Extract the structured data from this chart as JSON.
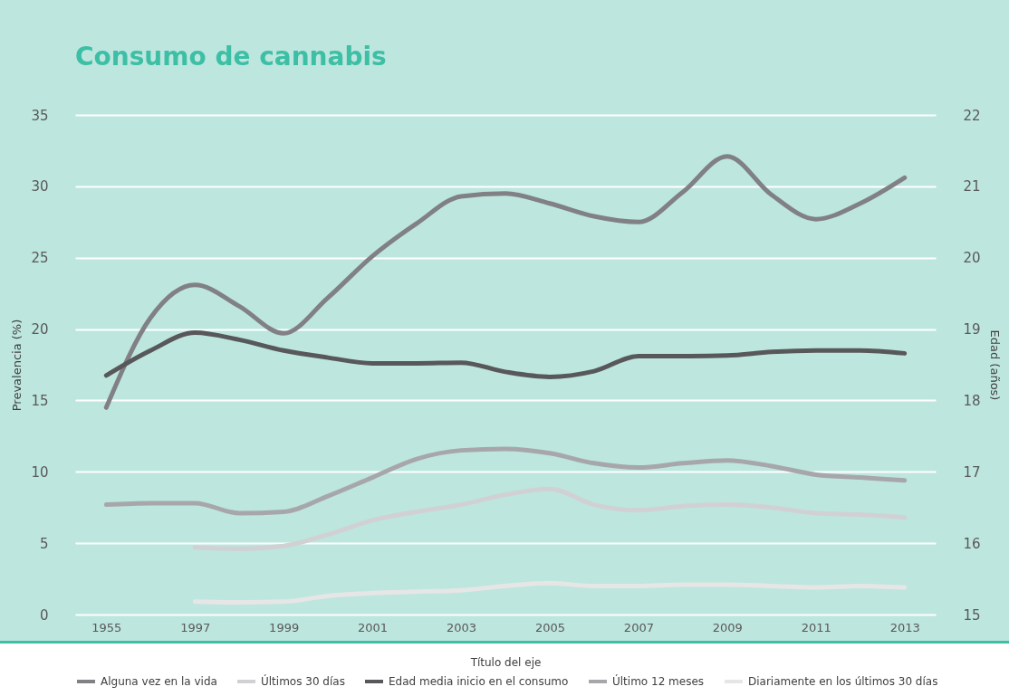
{
  "chart_data": {
    "type": "line",
    "title": "Consumo de cannabis",
    "xlabel": "Título del eje",
    "ylabel": "Prevalencia (%)",
    "y2label": "Edad (años)",
    "categories": [
      "1955",
      null,
      "1997",
      null,
      "1999",
      null,
      "2001",
      null,
      "2003",
      null,
      "2005",
      null,
      "2007",
      null,
      "2009",
      null,
      "2011",
      null,
      "2013"
    ],
    "series": [
      {
        "name": "Alguna vez en la vida",
        "color": "#808085",
        "values": [
          14.5,
          20.8,
          23.1,
          21.6,
          19.7,
          22.2,
          25.1,
          27.4,
          29.3,
          29.5,
          28.8,
          27.9,
          27.5,
          29.6,
          32.1,
          29.4,
          27.7,
          28.8,
          30.6
        ]
      },
      {
        "name": "Últimos 30 días",
        "color": "#d1d1d3",
        "values": [
          null,
          null,
          4.7,
          4.6,
          4.8,
          5.6,
          6.6,
          7.2,
          7.7,
          8.4,
          8.8,
          7.7,
          7.3,
          7.6,
          7.7,
          7.5,
          7.1,
          7.0,
          6.8
        ]
      },
      {
        "name": "Edad media inicio en el consumo",
        "color": "#58585a",
        "axis": "y2",
        "values": [
          18.35,
          18.7,
          18.95,
          18.85,
          18.7,
          18.6,
          18.52,
          18.52,
          18.53,
          18.4,
          18.33,
          18.41,
          18.62,
          18.62,
          18.63,
          18.68,
          18.7,
          18.7,
          18.66
        ]
      },
      {
        "name": "Último 12 meses",
        "color": "#a7a7ab",
        "values": [
          7.7,
          7.8,
          7.8,
          7.1,
          7.2,
          8.3,
          9.6,
          10.9,
          11.5,
          11.6,
          11.3,
          10.6,
          10.3,
          10.6,
          10.8,
          10.4,
          9.8,
          9.6,
          9.4
        ]
      },
      {
        "name": "Diariamente en los últimos 30 días",
        "color": "#e6e6e6",
        "values": [
          null,
          null,
          0.9,
          0.85,
          0.9,
          1.3,
          1.5,
          1.6,
          1.7,
          2.0,
          2.2,
          2.0,
          2.0,
          2.1,
          2.1,
          2.0,
          1.9,
          2.0,
          1.9
        ]
      }
    ],
    "ylim": [
      0,
      35
    ],
    "yticks": [
      0,
      5,
      10,
      15,
      20,
      25,
      30,
      35
    ],
    "y2lim": [
      15,
      22
    ],
    "y2ticks": [
      15,
      16,
      17,
      18,
      19,
      20,
      21,
      22
    ],
    "grid": "y",
    "legend": "bottom",
    "marker": "none",
    "line_style": "solid"
  }
}
